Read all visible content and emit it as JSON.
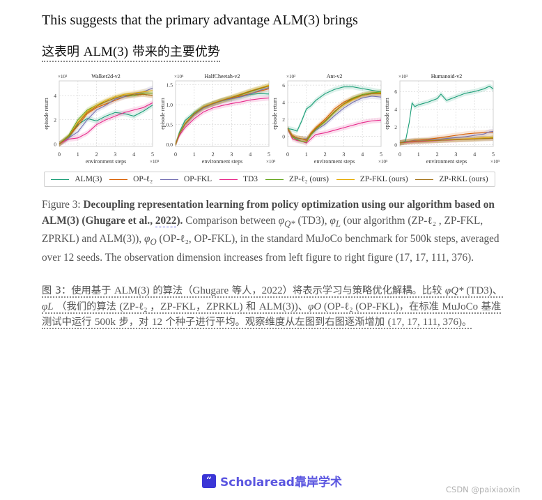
{
  "text": {
    "line_en": "This suggests that the primary advantage ALM(3) brings",
    "line_zh_prefix": "这表明 ",
    "line_zh_en": "ALM(3)",
    "line_zh_suffix": " 带来的主要优势"
  },
  "figure": {
    "legend": [
      {
        "name": "ALM(3)",
        "color": "#1b9e77"
      },
      {
        "name": "OP-ℓ₂",
        "color": "#d95f02"
      },
      {
        "name": "OP-FKL",
        "color": "#7570b3"
      },
      {
        "name": "TD3",
        "color": "#e7298a"
      },
      {
        "name": "ZP-ℓ₂ (ours)",
        "color": "#66a61e"
      },
      {
        "name": "ZP-FKL (ours)",
        "color": "#e6ab02"
      },
      {
        "name": "ZP-RKL (ours)",
        "color": "#a6761d"
      }
    ]
  },
  "chart_data": [
    {
      "type": "line",
      "title": "Walker2d-v2",
      "xlabel": "environment steps",
      "ylabel": "episode return",
      "x_multiplier": "×10⁵",
      "y_multiplier": "×10³",
      "xlim": [
        0,
        5
      ],
      "ylim": [
        -0.2,
        5.2
      ],
      "xticks": [
        0,
        1,
        2,
        3,
        4,
        5
      ],
      "yticks": [
        0,
        2,
        4
      ],
      "grid": true,
      "x": [
        0,
        0.5,
        1,
        1.5,
        2,
        2.5,
        3,
        3.5,
        4,
        4.5,
        5
      ],
      "series": [
        {
          "name": "ALM(3)",
          "values": [
            0,
            0.5,
            1.6,
            2.1,
            1.9,
            2.3,
            2.6,
            2.5,
            2.3,
            2.7,
            3.2
          ]
        },
        {
          "name": "OP-ℓ₂",
          "values": [
            0,
            0.6,
            1.5,
            2.5,
            3.0,
            3.3,
            3.6,
            3.9,
            4.0,
            4.1,
            4.0
          ]
        },
        {
          "name": "OP-FKL",
          "values": [
            0,
            0.5,
            1.0,
            2.0,
            2.8,
            3.2,
            3.7,
            3.9,
            4.1,
            4.3,
            4.6
          ]
        },
        {
          "name": "TD3",
          "values": [
            0,
            0.4,
            0.5,
            0.9,
            1.6,
            2.0,
            2.3,
            2.6,
            2.8,
            3.0,
            3.4
          ]
        },
        {
          "name": "ZP-ℓ₂ (ours)",
          "values": [
            0,
            0.7,
            2.0,
            2.8,
            3.2,
            3.5,
            3.8,
            4.0,
            4.0,
            4.2,
            4.2
          ]
        },
        {
          "name": "ZP-FKL (ours)",
          "values": [
            0,
            0.6,
            1.8,
            2.7,
            3.2,
            3.6,
            3.9,
            4.1,
            4.2,
            4.3,
            4.4
          ]
        },
        {
          "name": "ZP-RKL (ours)",
          "values": [
            0,
            0.6,
            1.7,
            2.6,
            3.1,
            3.5,
            3.8,
            4.0,
            4.1,
            4.1,
            4.0
          ]
        }
      ]
    },
    {
      "type": "line",
      "title": "HalfCheetah-v2",
      "xlabel": "environment steps",
      "ylabel": "episode return",
      "x_multiplier": "×10⁵",
      "y_multiplier": "×10⁴",
      "xlim": [
        0,
        5
      ],
      "ylim": [
        -0.05,
        1.6
      ],
      "xticks": [
        0,
        1,
        2,
        3,
        4,
        5
      ],
      "yticks": [
        0.0,
        0.5,
        1.0,
        1.5
      ],
      "grid": true,
      "x": [
        0,
        0.2,
        0.5,
        1,
        1.5,
        2,
        2.5,
        3,
        3.5,
        4,
        4.5,
        5
      ],
      "series": [
        {
          "name": "ALM(3)",
          "values": [
            0,
            0.3,
            0.6,
            0.8,
            0.95,
            1.03,
            1.1,
            1.15,
            1.2,
            1.26,
            1.28,
            1.27
          ]
        },
        {
          "name": "OP-ℓ₂",
          "values": [
            0,
            0.25,
            0.5,
            0.75,
            0.92,
            1.02,
            1.1,
            1.16,
            1.22,
            1.28,
            1.34,
            1.4
          ]
        },
        {
          "name": "OP-FKL",
          "values": [
            0,
            0.25,
            0.5,
            0.75,
            0.92,
            1.02,
            1.1,
            1.15,
            1.2,
            1.27,
            1.36,
            1.43
          ]
        },
        {
          "name": "TD3",
          "values": [
            0,
            0.22,
            0.42,
            0.65,
            0.82,
            0.92,
            0.98,
            1.03,
            1.07,
            1.12,
            1.15,
            1.17
          ]
        },
        {
          "name": "ZP-ℓ₂ (ours)",
          "values": [
            0,
            0.27,
            0.52,
            0.77,
            0.94,
            1.03,
            1.11,
            1.18,
            1.25,
            1.33,
            1.4,
            1.47
          ]
        },
        {
          "name": "ZP-FKL (ours)",
          "values": [
            0,
            0.27,
            0.52,
            0.78,
            0.95,
            1.04,
            1.12,
            1.19,
            1.27,
            1.35,
            1.42,
            1.49
          ]
        },
        {
          "name": "ZP-RKL (ours)",
          "values": [
            0,
            0.26,
            0.51,
            0.77,
            0.94,
            1.03,
            1.11,
            1.18,
            1.26,
            1.34,
            1.41,
            1.47
          ]
        }
      ]
    },
    {
      "type": "line",
      "title": "Ant-v2",
      "xlabel": "environment steps",
      "ylabel": "episode return",
      "x_multiplier": "×10⁵",
      "y_multiplier": "×10³",
      "xlim": [
        0,
        5
      ],
      "ylim": [
        -1.2,
        6.5
      ],
      "xticks": [
        0,
        1,
        2,
        3,
        4,
        5
      ],
      "yticks": [
        0,
        2,
        4,
        6
      ],
      "grid": true,
      "x": [
        0,
        0.25,
        0.5,
        0.75,
        1,
        1.25,
        1.5,
        2,
        2.5,
        3,
        3.5,
        4,
        4.5,
        5
      ],
      "series": [
        {
          "name": "ALM(3)",
          "values": [
            0.9,
            0.8,
            0.6,
            1.8,
            3.2,
            3.6,
            4.2,
            5.0,
            5.5,
            5.8,
            5.8,
            5.6,
            5.4,
            5.2
          ]
        },
        {
          "name": "OP-ℓ₂",
          "values": [
            0.9,
            0.1,
            -0.2,
            -0.3,
            -0.5,
            0.4,
            1.0,
            2.0,
            3.2,
            4.0,
            4.5,
            4.8,
            5.0,
            5.0
          ]
        },
        {
          "name": "OP-FKL",
          "values": [
            0.9,
            0.0,
            -0.3,
            -0.3,
            -0.3,
            0.2,
            0.7,
            1.4,
            2.4,
            3.3,
            4.0,
            4.5,
            4.7,
            4.6
          ]
        },
        {
          "name": "TD3",
          "values": [
            0.9,
            -0.3,
            -0.5,
            -0.6,
            -0.8,
            -0.3,
            0.2,
            0.4,
            0.7,
            1.0,
            1.3,
            1.6,
            1.8,
            1.9
          ]
        },
        {
          "name": "ZP-ℓ₂ (ours)",
          "values": [
            0.9,
            -0.1,
            -0.4,
            -0.6,
            -0.7,
            0.2,
            0.8,
            1.7,
            2.8,
            3.8,
            4.5,
            4.9,
            5.1,
            5.2
          ]
        },
        {
          "name": "ZP-FKL (ours)",
          "values": [
            0.9,
            0.0,
            -0.2,
            -0.3,
            -0.4,
            0.3,
            0.9,
            1.8,
            2.9,
            3.7,
            4.3,
            4.8,
            5.0,
            5.1
          ]
        },
        {
          "name": "ZP-RKL (ours)",
          "values": [
            0.9,
            0.0,
            -0.2,
            -0.3,
            -0.4,
            0.3,
            0.9,
            1.8,
            2.9,
            3.8,
            4.4,
            4.8,
            5.0,
            5.0
          ]
        }
      ]
    },
    {
      "type": "line",
      "title": "Humanoid-v2",
      "xlabel": "environment steps",
      "ylabel": "episode return",
      "x_multiplier": "×10⁵",
      "y_multiplier": "×10³",
      "xlim": [
        0,
        5
      ],
      "ylim": [
        -0.2,
        7.2
      ],
      "xticks": [
        0,
        1,
        2,
        3,
        4,
        5
      ],
      "yticks": [
        0,
        2,
        4,
        6
      ],
      "grid": true,
      "x": [
        0,
        0.3,
        0.5,
        0.65,
        0.8,
        1,
        1.5,
        2,
        2.2,
        2.5,
        3,
        3.5,
        4,
        4.5,
        4.8,
        5
      ],
      "series": [
        {
          "name": "ALM(3)",
          "values": [
            0.2,
            0.4,
            2.5,
            4.7,
            4.3,
            4.5,
            4.8,
            5.2,
            5.7,
            5.0,
            5.4,
            5.8,
            6.0,
            6.3,
            6.6,
            6.3
          ]
        },
        {
          "name": "OP-ℓ₂",
          "values": [
            0.2,
            0.35,
            0.4,
            0.45,
            0.5,
            0.5,
            0.6,
            0.75,
            0.8,
            0.9,
            1.05,
            1.2,
            1.3,
            1.35,
            1.4,
            1.4
          ]
        },
        {
          "name": "OP-FKL",
          "values": [
            0.2,
            0.35,
            0.4,
            0.42,
            0.45,
            0.45,
            0.5,
            0.6,
            0.62,
            0.7,
            0.8,
            0.9,
            1.05,
            1.2,
            1.45,
            1.5
          ]
        },
        {
          "name": "TD3",
          "values": [
            0.2,
            0.25,
            0.3,
            0.3,
            0.32,
            0.35,
            0.4,
            0.45,
            0.5,
            0.5,
            0.55,
            0.6,
            0.65,
            0.7,
            0.7,
            0.75
          ]
        },
        {
          "name": "ZP-ℓ₂ (ours)",
          "values": [
            0.2,
            0.3,
            0.35,
            0.38,
            0.4,
            0.42,
            0.45,
            0.5,
            0.5,
            0.55,
            0.6,
            0.62,
            0.65,
            0.7,
            0.72,
            0.75
          ]
        },
        {
          "name": "ZP-FKL (ours)",
          "values": [
            0.2,
            0.3,
            0.35,
            0.38,
            0.4,
            0.42,
            0.45,
            0.5,
            0.52,
            0.55,
            0.6,
            0.65,
            0.7,
            0.78,
            0.82,
            0.85
          ]
        },
        {
          "name": "ZP-RKL (ours)",
          "values": [
            0.2,
            0.3,
            0.34,
            0.36,
            0.38,
            0.4,
            0.44,
            0.48,
            0.5,
            0.52,
            0.56,
            0.6,
            0.64,
            0.68,
            0.7,
            0.72
          ]
        }
      ]
    }
  ],
  "caption": {
    "label": "Figure 3: ",
    "bold_title": "Decoupling representation learning from policy optimization using our algorithm based on ALM(3) (Ghugare et al., ",
    "bold_ref": "2022",
    "bold_close": ").",
    "body_1": " Comparison between ",
    "math_q": "φ",
    "math_q_sub": "Q*",
    "body_2": "  (TD3), ",
    "math_l": "φ",
    "math_l_sub": "L",
    "body_3": "  (our algorithm (ZP-ℓ₂ , ZP-FKL, ZPRKL) and ALM(3)), ",
    "math_o": "φ",
    "math_o_sub": "O",
    "body_4": "   (OP-ℓ₂, OP-FKL), in the standard MuJoCo benchmark for 500k steps, averaged over 12 seeds. The observation dimension increases from left figure to right figure (17, 17, 111, 376)."
  },
  "caption_zh": {
    "line1_a": "图 3：使用基于 ",
    "line1_b": "ALM(3)",
    "line1_c": " 的算法（",
    "line1_d": "Ghugare",
    "line1_e": " 等人，",
    "line1_f": "2022",
    "line1_g": "）将表示学习与策略优化解耦。比较 ",
    "line1_h": "φQ*",
    "line1_i": " (TD3)、",
    "line2_a": "φL",
    "line2_b": " （我们的算法 ",
    "line2_c": "(ZP-ℓ₂ ，ZP-FKL，ZPRKL)",
    "line2_d": " 和 ",
    "line2_e": "ALM(3))",
    "line2_f": "、",
    "line2_g": "φO",
    "line2_h": " (OP-ℓ₂ (OP-FKL)",
    "line2_i": "，在标准 ",
    "line2_j": "MuJoCo",
    "line2_k": " 基准",
    "line3_a": "测试中运行 ",
    "line3_b": "500k",
    "line3_c": " 步，对 ",
    "line3_d": "12",
    "line3_e": " 个种子进行平均。观察维度从左图到右图逐渐增加 ",
    "line3_f": "(17, 17, 111, 376)",
    "line3_g": "。"
  },
  "footer": {
    "brand_icon": "“",
    "brand": "Scholaread靠岸学术",
    "watermark": "CSDN @paixiaoxin"
  }
}
